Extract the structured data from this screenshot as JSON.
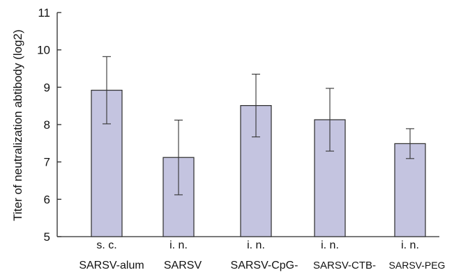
{
  "chart_data": {
    "type": "bar",
    "ylabel": "Titer of neutralization abtibody (log2)",
    "ylim": [
      5,
      11
    ],
    "yticks": [
      5,
      6,
      7,
      8,
      9,
      10,
      11
    ],
    "grid": false,
    "categories": [
      {
        "route": "s. c.",
        "name": "SARSV-alum",
        "value": 8.92,
        "error": 0.9
      },
      {
        "route": "i. n.",
        "name": "SARSV",
        "value": 7.12,
        "error": 1.0
      },
      {
        "route": "i. n.",
        "name": "SARSV-CpG-",
        "value": 8.51,
        "error": 0.84
      },
      {
        "route": "i. n.",
        "name": "SARSV-CTB-",
        "value": 8.13,
        "error": 0.84
      },
      {
        "route": "i. n.",
        "name": "SARSV-PEG",
        "value": 7.49,
        "error": 0.4
      }
    ],
    "colors": {
      "bar_fill": "#c4c4e0",
      "bar_stroke": "#2b2b2b",
      "axis": "#2b2b2b"
    }
  }
}
